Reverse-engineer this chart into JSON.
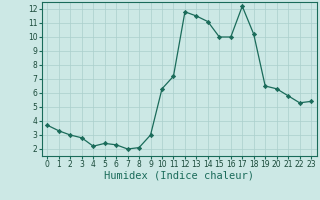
{
  "x": [
    0,
    1,
    2,
    3,
    4,
    5,
    6,
    7,
    8,
    9,
    10,
    11,
    12,
    13,
    14,
    15,
    16,
    17,
    18,
    19,
    20,
    21,
    22,
    23
  ],
  "y": [
    3.7,
    3.3,
    3.0,
    2.8,
    2.2,
    2.4,
    2.3,
    2.0,
    2.1,
    3.0,
    6.3,
    7.2,
    11.8,
    11.5,
    11.1,
    10.0,
    10.0,
    12.2,
    10.2,
    6.5,
    6.3,
    5.8,
    5.3,
    5.4
  ],
  "line_color": "#1a6b5a",
  "marker": "D",
  "marker_size": 2.2,
  "xlabel": "Humidex (Indice chaleur)",
  "xlim": [
    -0.5,
    23.5
  ],
  "ylim": [
    1.5,
    12.5
  ],
  "yticks": [
    2,
    3,
    4,
    5,
    6,
    7,
    8,
    9,
    10,
    11,
    12
  ],
  "xticks": [
    0,
    1,
    2,
    3,
    4,
    5,
    6,
    7,
    8,
    9,
    10,
    11,
    12,
    13,
    14,
    15,
    16,
    17,
    18,
    19,
    20,
    21,
    22,
    23
  ],
  "bg_color": "#cce8e5",
  "grid_color": "#aacfcc",
  "tick_fontsize": 5.5,
  "xlabel_fontsize": 7.5,
  "linewidth": 0.9
}
